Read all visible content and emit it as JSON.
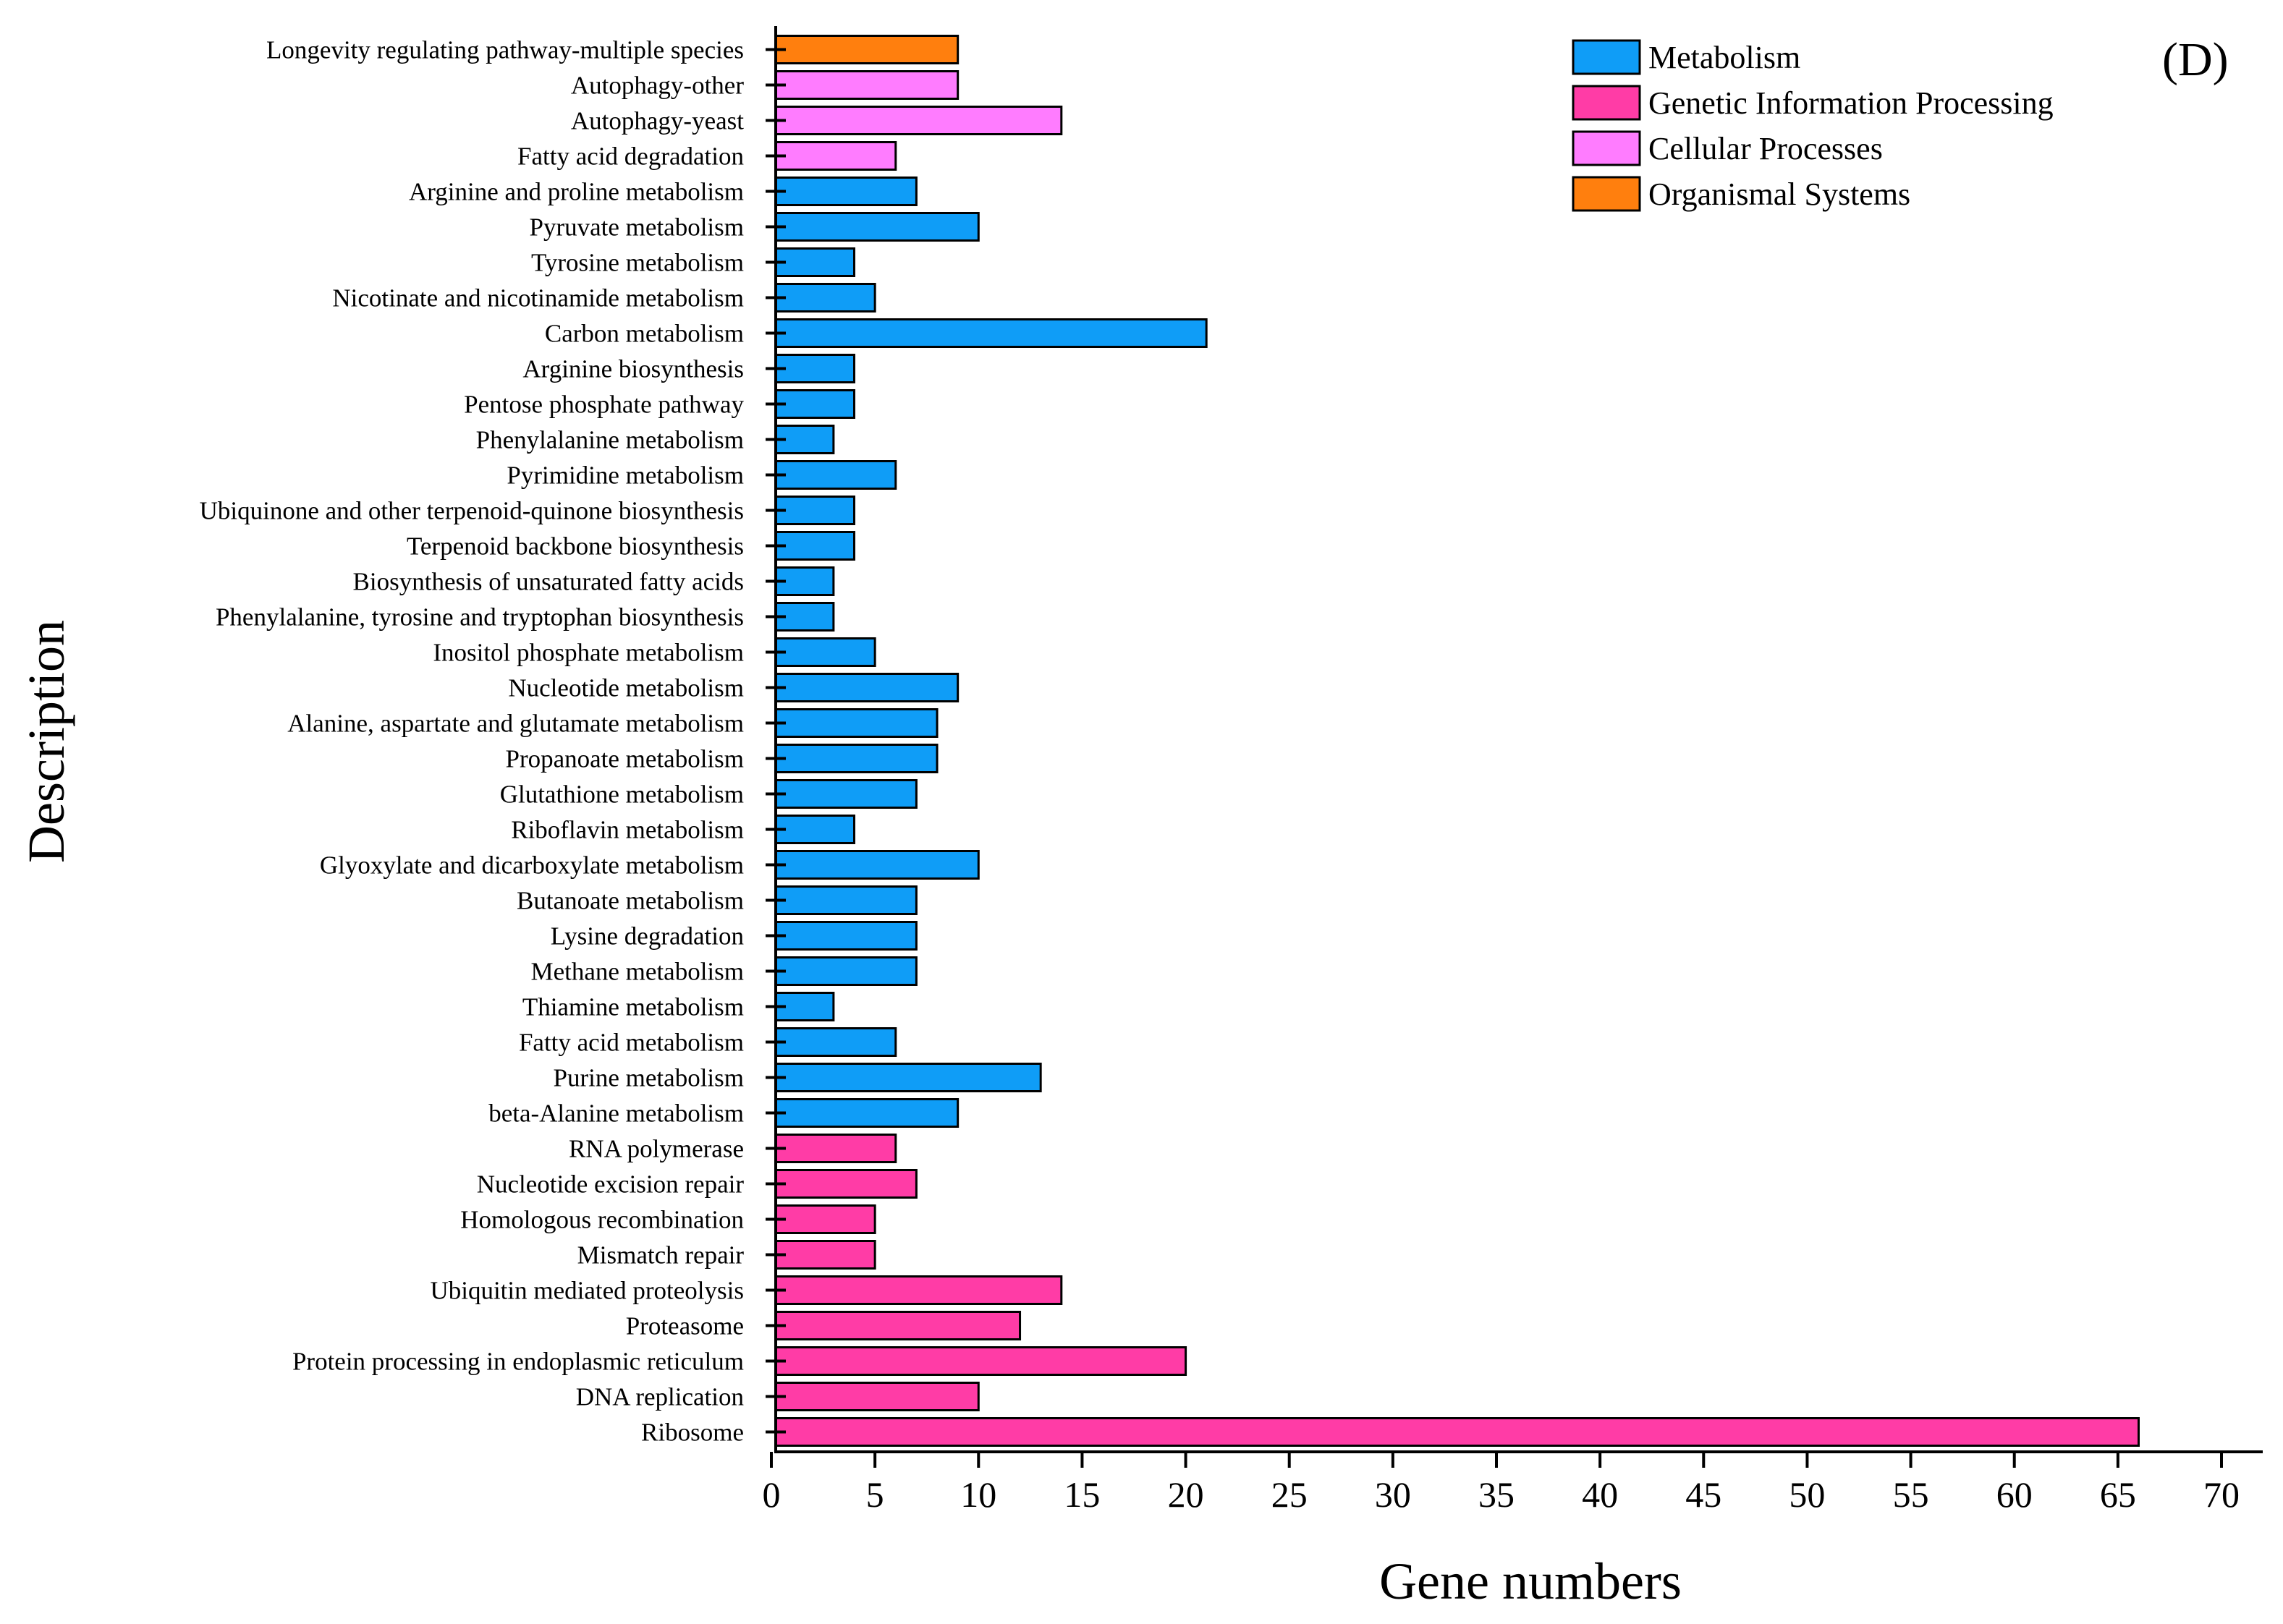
{
  "chart_data": {
    "type": "bar",
    "orientation": "horizontal",
    "panel_label": "(D)",
    "xlabel": "Gene numbers",
    "ylabel": "Description",
    "xlim": [
      0,
      70
    ],
    "xticks": [
      "0",
      "5",
      "10",
      "15",
      "20",
      "25",
      "30",
      "35",
      "40",
      "45",
      "50",
      "55",
      "60",
      "65",
      "70"
    ],
    "grid": false,
    "legend_position": "top-right",
    "legend": [
      {
        "name": "Metabolism",
        "color": "#0f9df7"
      },
      {
        "name": "Genetic Information Processing",
        "color": "#ff3ca6"
      },
      {
        "name": "Cellular Processes",
        "color": "#ff7cff"
      },
      {
        "name": "Organismal Systems",
        "color": "#ff7f0e"
      }
    ],
    "bars": [
      {
        "label": "Longevity regulating pathway-multiple species",
        "value": 9,
        "group": "Organismal Systems"
      },
      {
        "label": "Autophagy-other",
        "value": 9,
        "group": "Cellular Processes"
      },
      {
        "label": "Autophagy-yeast",
        "value": 14,
        "group": "Cellular Processes"
      },
      {
        "label": "Fatty acid degradation",
        "value": 6,
        "group": "Cellular Processes"
      },
      {
        "label": "Arginine and proline metabolism",
        "value": 7,
        "group": "Metabolism"
      },
      {
        "label": "Pyruvate metabolism",
        "value": 10,
        "group": "Metabolism"
      },
      {
        "label": "Tyrosine metabolism",
        "value": 4,
        "group": "Metabolism"
      },
      {
        "label": "Nicotinate and nicotinamide metabolism",
        "value": 5,
        "group": "Metabolism"
      },
      {
        "label": "Carbon metabolism",
        "value": 21,
        "group": "Metabolism"
      },
      {
        "label": "Arginine biosynthesis",
        "value": 4,
        "group": "Metabolism"
      },
      {
        "label": "Pentose phosphate pathway",
        "value": 4,
        "group": "Metabolism"
      },
      {
        "label": "Phenylalanine metabolism",
        "value": 3,
        "group": "Metabolism"
      },
      {
        "label": "Pyrimidine metabolism",
        "value": 6,
        "group": "Metabolism"
      },
      {
        "label": "Ubiquinone and other terpenoid-quinone biosynthesis",
        "value": 4,
        "group": "Metabolism"
      },
      {
        "label": "Terpenoid backbone biosynthesis",
        "value": 4,
        "group": "Metabolism"
      },
      {
        "label": "Biosynthesis of unsaturated fatty acids",
        "value": 3,
        "group": "Metabolism"
      },
      {
        "label": "Phenylalanine, tyrosine and tryptophan biosynthesis",
        "value": 3,
        "group": "Metabolism"
      },
      {
        "label": "Inositol phosphate metabolism",
        "value": 5,
        "group": "Metabolism"
      },
      {
        "label": "Nucleotide metabolism",
        "value": 9,
        "group": "Metabolism"
      },
      {
        "label": "Alanine, aspartate and glutamate metabolism",
        "value": 8,
        "group": "Metabolism"
      },
      {
        "label": "Propanoate metabolism",
        "value": 8,
        "group": "Metabolism"
      },
      {
        "label": "Glutathione metabolism",
        "value": 7,
        "group": "Metabolism"
      },
      {
        "label": "Riboflavin metabolism",
        "value": 4,
        "group": "Metabolism"
      },
      {
        "label": "Glyoxylate and dicarboxylate metabolism",
        "value": 10,
        "group": "Metabolism"
      },
      {
        "label": "Butanoate metabolism",
        "value": 7,
        "group": "Metabolism"
      },
      {
        "label": "Lysine degradation",
        "value": 7,
        "group": "Metabolism"
      },
      {
        "label": "Methane metabolism",
        "value": 7,
        "group": "Metabolism"
      },
      {
        "label": "Thiamine metabolism",
        "value": 3,
        "group": "Metabolism"
      },
      {
        "label": "Fatty acid metabolism",
        "value": 6,
        "group": "Metabolism"
      },
      {
        "label": "Purine metabolism",
        "value": 13,
        "group": "Metabolism"
      },
      {
        "label": "beta-Alanine metabolism",
        "value": 9,
        "group": "Metabolism"
      },
      {
        "label": "RNA polymerase",
        "value": 6,
        "group": "Genetic Information Processing"
      },
      {
        "label": "Nucleotide excision repair",
        "value": 7,
        "group": "Genetic Information Processing"
      },
      {
        "label": "Homologous recombination",
        "value": 5,
        "group": "Genetic Information Processing"
      },
      {
        "label": "Mismatch repair",
        "value": 5,
        "group": "Genetic Information Processing"
      },
      {
        "label": "Ubiquitin mediated proteolysis",
        "value": 14,
        "group": "Genetic Information Processing"
      },
      {
        "label": "Proteasome",
        "value": 12,
        "group": "Genetic Information Processing"
      },
      {
        "label": "Protein processing in endoplasmic reticulum",
        "value": 20,
        "group": "Genetic Information Processing"
      },
      {
        "label": "DNA replication",
        "value": 10,
        "group": "Genetic Information Processing"
      },
      {
        "label": "Ribosome",
        "value": 66,
        "group": "Genetic Information Processing"
      }
    ]
  }
}
